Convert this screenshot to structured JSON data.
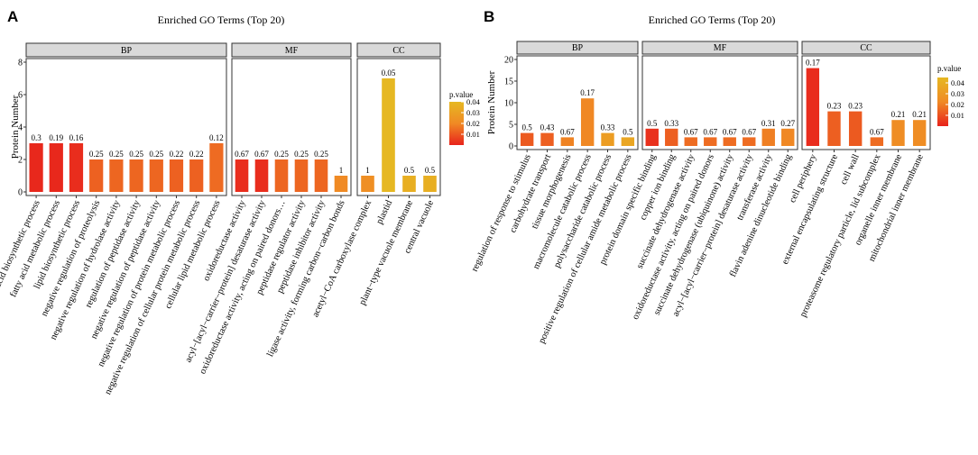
{
  "colors": {
    "low": "#e8231c",
    "mid": "#f08a24",
    "high": "#e6b822",
    "strip_fill": "#d9d9d9",
    "frame": "#333333"
  },
  "chart_data": [
    {
      "panel_letter": "A",
      "type": "bar",
      "title": "Enriched GO Terms (Top 20)",
      "ylabel": "Protein Number",
      "ylim": [
        0,
        8
      ],
      "yticks": [
        "0",
        "2",
        "4",
        "6",
        "8"
      ],
      "legend": {
        "title": "p.value",
        "ticks": [
          "0.04",
          "0.03",
          "0.02",
          "0.01"
        ],
        "range": [
          0.0,
          0.04
        ]
      },
      "facets": [
        {
          "name": "BP",
          "categories": [
            "fatty acid biosynthetic process",
            "fatty acid metabolic process",
            "lipid biosynthetic process",
            "negative regulation of proteolysis",
            "negative regulation of hydrolase activity",
            "regulation of peptidase activity",
            "negative regulation of peptidase activity",
            "negative regulation of protein metabolic process",
            "negative regulation of cellular protein metabolic process",
            "cellular lipid metabolic process"
          ],
          "values": [
            3,
            3,
            3,
            2,
            2,
            2,
            2,
            2,
            2,
            3
          ],
          "labels": [
            "0.3",
            "0.19",
            "0.16",
            "0.25",
            "0.25",
            "0.25",
            "0.25",
            "0.22",
            "0.22",
            "0.12"
          ],
          "pvalues": [
            0.001,
            0.001,
            0.002,
            0.012,
            0.013,
            0.013,
            0.013,
            0.012,
            0.012,
            0.014
          ]
        },
        {
          "name": "MF",
          "categories": [
            "oxidoreductase activity",
            "acyl−[acyl−carrier−protein] desaturase activity",
            "oxidoreductase activity, acting on paired donors…",
            "peptidase regulator activity",
            "peptidase inhibitor activity",
            "ligase activity, forming carbon−carbon bonds"
          ],
          "values": [
            2,
            2,
            2,
            2,
            2,
            1
          ],
          "labels": [
            "0.67",
            "0.67",
            "0.25",
            "0.25",
            "0.25",
            "1"
          ],
          "pvalues": [
            0.002,
            0.002,
            0.013,
            0.013,
            0.013,
            0.02
          ]
        },
        {
          "name": "CC",
          "categories": [
            "acetyl−CoA carboxylase complex",
            "plastid",
            "plant−type vacuole membrane",
            "central vacuole"
          ],
          "values": [
            1,
            7,
            1,
            1
          ],
          "labels": [
            "1",
            "0.05",
            "0.5",
            "0.5"
          ],
          "pvalues": [
            0.022,
            0.04,
            0.036,
            0.036
          ]
        }
      ]
    },
    {
      "panel_letter": "B",
      "type": "bar",
      "title": "Enriched GO Terms (Top 20)",
      "ylabel": "Protein Number",
      "ylim": [
        0,
        20
      ],
      "yticks": [
        "0",
        "5",
        "10",
        "15",
        "20"
      ],
      "legend": {
        "title": "p.value",
        "ticks": [
          "0.04",
          "0.03",
          "0.02",
          "0.01"
        ],
        "range": [
          0.0,
          0.045
        ]
      },
      "facets": [
        {
          "name": "BP",
          "categories": [
            "regulation of response to stimulus",
            "carbohydrate transport",
            "tissue morphogenesis",
            "macromolecule catabolic process",
            "polysaccharide catabolic process",
            "positive regulation of cellular amide metabolic process"
          ],
          "values": [
            3,
            3,
            2,
            11,
            3,
            2
          ],
          "labels": [
            "0.5",
            "0.43",
            "0.67",
            "0.17",
            "0.33",
            "0.5"
          ],
          "pvalues": [
            0.012,
            0.013,
            0.021,
            0.022,
            0.032,
            0.036
          ]
        },
        {
          "name": "MF",
          "categories": [
            "protein domain specific binding",
            "copper ion binding",
            "succinate dehydrogenase activity",
            "oxidoreductase activity, acting on paired donors",
            "succinate dehydrogenase (ubiquinone) activity",
            "acyl−[acyl−carrier−protein] desaturase activity",
            "transferase activity",
            "flavin adenine dinucleotide binding"
          ],
          "values": [
            4,
            4,
            2,
            2,
            2,
            2,
            4,
            4
          ],
          "labels": [
            "0.5",
            "0.33",
            "0.67",
            "0.67",
            "0.67",
            "0.67",
            "0.31",
            "0.27"
          ],
          "pvalues": [
            0.003,
            0.013,
            0.016,
            0.016,
            0.016,
            0.016,
            0.02,
            0.022
          ]
        },
        {
          "name": "CC",
          "categories": [
            "cell periphery",
            "external encapsulating structure",
            "cell wall",
            "proteasome regulatory particle, lid subcomplex",
            "organelle inner membrane",
            "mitochondrial inner membrane"
          ],
          "values": [
            18,
            8,
            8,
            2,
            6,
            6
          ],
          "labels": [
            "0.17",
            "0.23",
            "0.23",
            "0.67",
            "0.21",
            "0.21"
          ],
          "pvalues": [
            0.002,
            0.013,
            0.012,
            0.016,
            0.024,
            0.024
          ]
        }
      ]
    }
  ]
}
